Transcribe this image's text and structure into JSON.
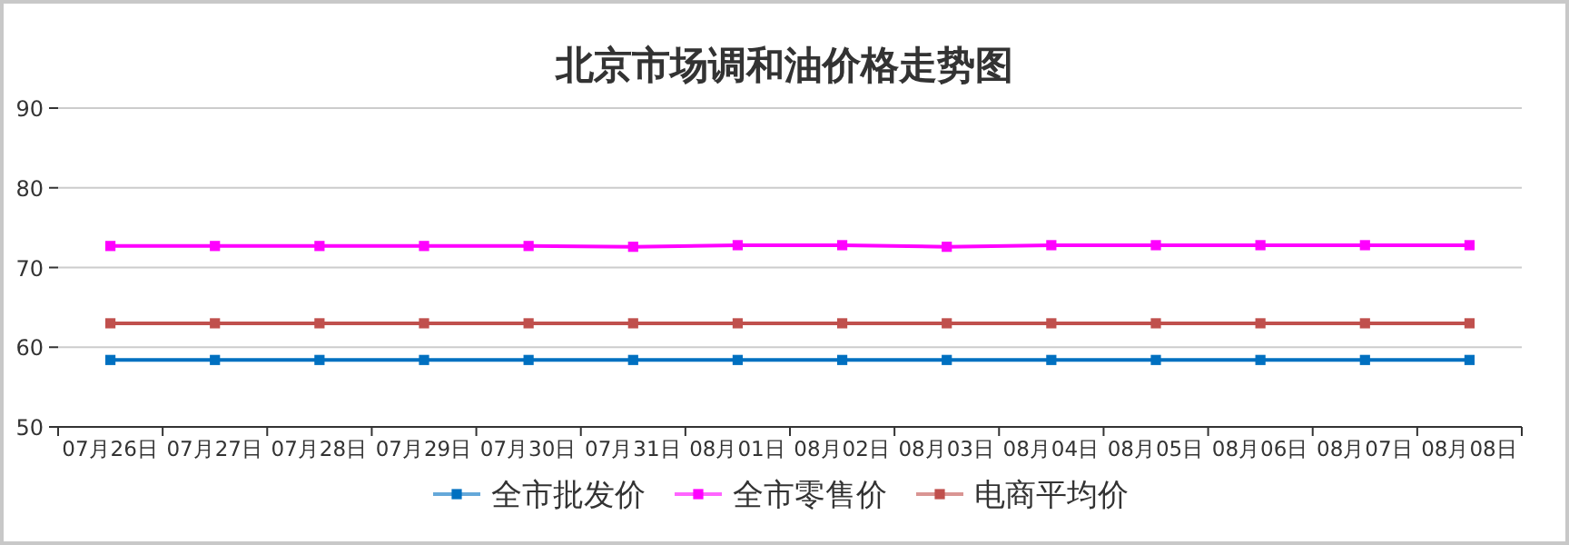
{
  "chart_data": {
    "type": "line",
    "title": "北京市场调和油价格走势图",
    "categories": [
      "07月26日",
      "07月27日",
      "07月28日",
      "07月29日",
      "07月30日",
      "07月31日",
      "08月01日",
      "08月02日",
      "08月03日",
      "08月04日",
      "08月05日",
      "08月06日",
      "08月07日",
      "08月08日"
    ],
    "series": [
      {
        "name": "全市批发价",
        "color": "#0070c0",
        "values": [
          58.4,
          58.4,
          58.4,
          58.4,
          58.4,
          58.4,
          58.4,
          58.4,
          58.4,
          58.4,
          58.4,
          58.4,
          58.4,
          58.4
        ]
      },
      {
        "name": "全市零售价",
        "color": "#ff00ff",
        "values": [
          72.7,
          72.7,
          72.7,
          72.7,
          72.7,
          72.6,
          72.8,
          72.8,
          72.6,
          72.8,
          72.8,
          72.8,
          72.8,
          72.8
        ]
      },
      {
        "name": "电商平均价",
        "color": "#c0504d",
        "values": [
          63,
          63,
          63,
          63,
          63,
          63,
          63,
          63,
          63,
          63,
          63,
          63,
          63,
          63
        ]
      }
    ],
    "ylim": [
      50,
      90
    ],
    "yticks": [
      50,
      60,
      70,
      80,
      90
    ],
    "grid": "y",
    "legend": "bottom",
    "marker": "square",
    "line_style": "solid"
  }
}
